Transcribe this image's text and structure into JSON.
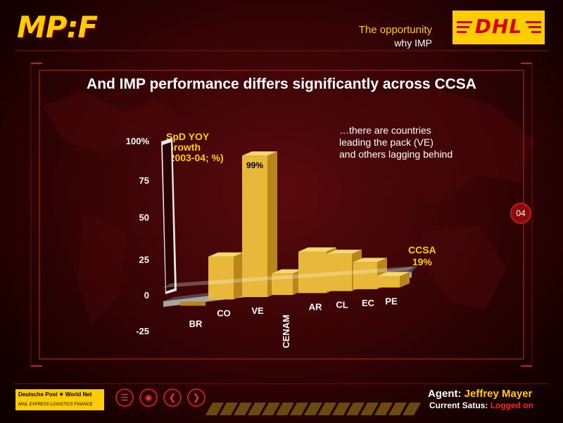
{
  "header": {
    "logo": "MP:F",
    "section_title": "The opportunity",
    "section_subtitle": "why IMP",
    "brand": "DHL"
  },
  "slide": {
    "title": "And IMP performance differs significantly across CCSA",
    "annotation": [
      "…there are countries",
      "leading the pack (VE)",
      "and others lagging behind"
    ],
    "page_number": "04"
  },
  "chart_data": {
    "type": "bar",
    "title": "",
    "ylabel_lines": [
      "SpD YOY",
      "Growth",
      "(2003-04; %)"
    ],
    "categories": [
      "BR",
      "CO",
      "VE",
      "CENAM",
      "AR",
      "CL",
      "EC",
      "PE"
    ],
    "values": [
      -3,
      30,
      99,
      15,
      29,
      26,
      19,
      8
    ],
    "value_labels": {
      "VE": "99%"
    },
    "ytick_values": [
      -25,
      0,
      25,
      50,
      75,
      100
    ],
    "ytick_labels": [
      "-25",
      "0",
      "25",
      "50",
      "75",
      "100%"
    ],
    "ylim": [
      -25,
      100
    ],
    "reference_line": {
      "value": 19,
      "label": "CCSA",
      "value_label": "19%"
    },
    "colors": {
      "bar": "#e8b83a",
      "bar_dark": "#b8861a",
      "bar_highlight": "#f5d86e",
      "label": "#ffcc00"
    },
    "grid": false
  },
  "footer": {
    "partner_name": "Deutsche Post",
    "partner_network": "World Net",
    "partner_tagline": "MAIL EXPRESS LOGISTICS FINANCE",
    "nav_icons": [
      "list-icon",
      "film-icon",
      "arrow-left-icon",
      "arrow-right-icon"
    ],
    "agent_label": "Agent:",
    "agent_name": "Jeffrey Mayer",
    "status_label": "Current Satus:",
    "status_value": "Logged on"
  }
}
